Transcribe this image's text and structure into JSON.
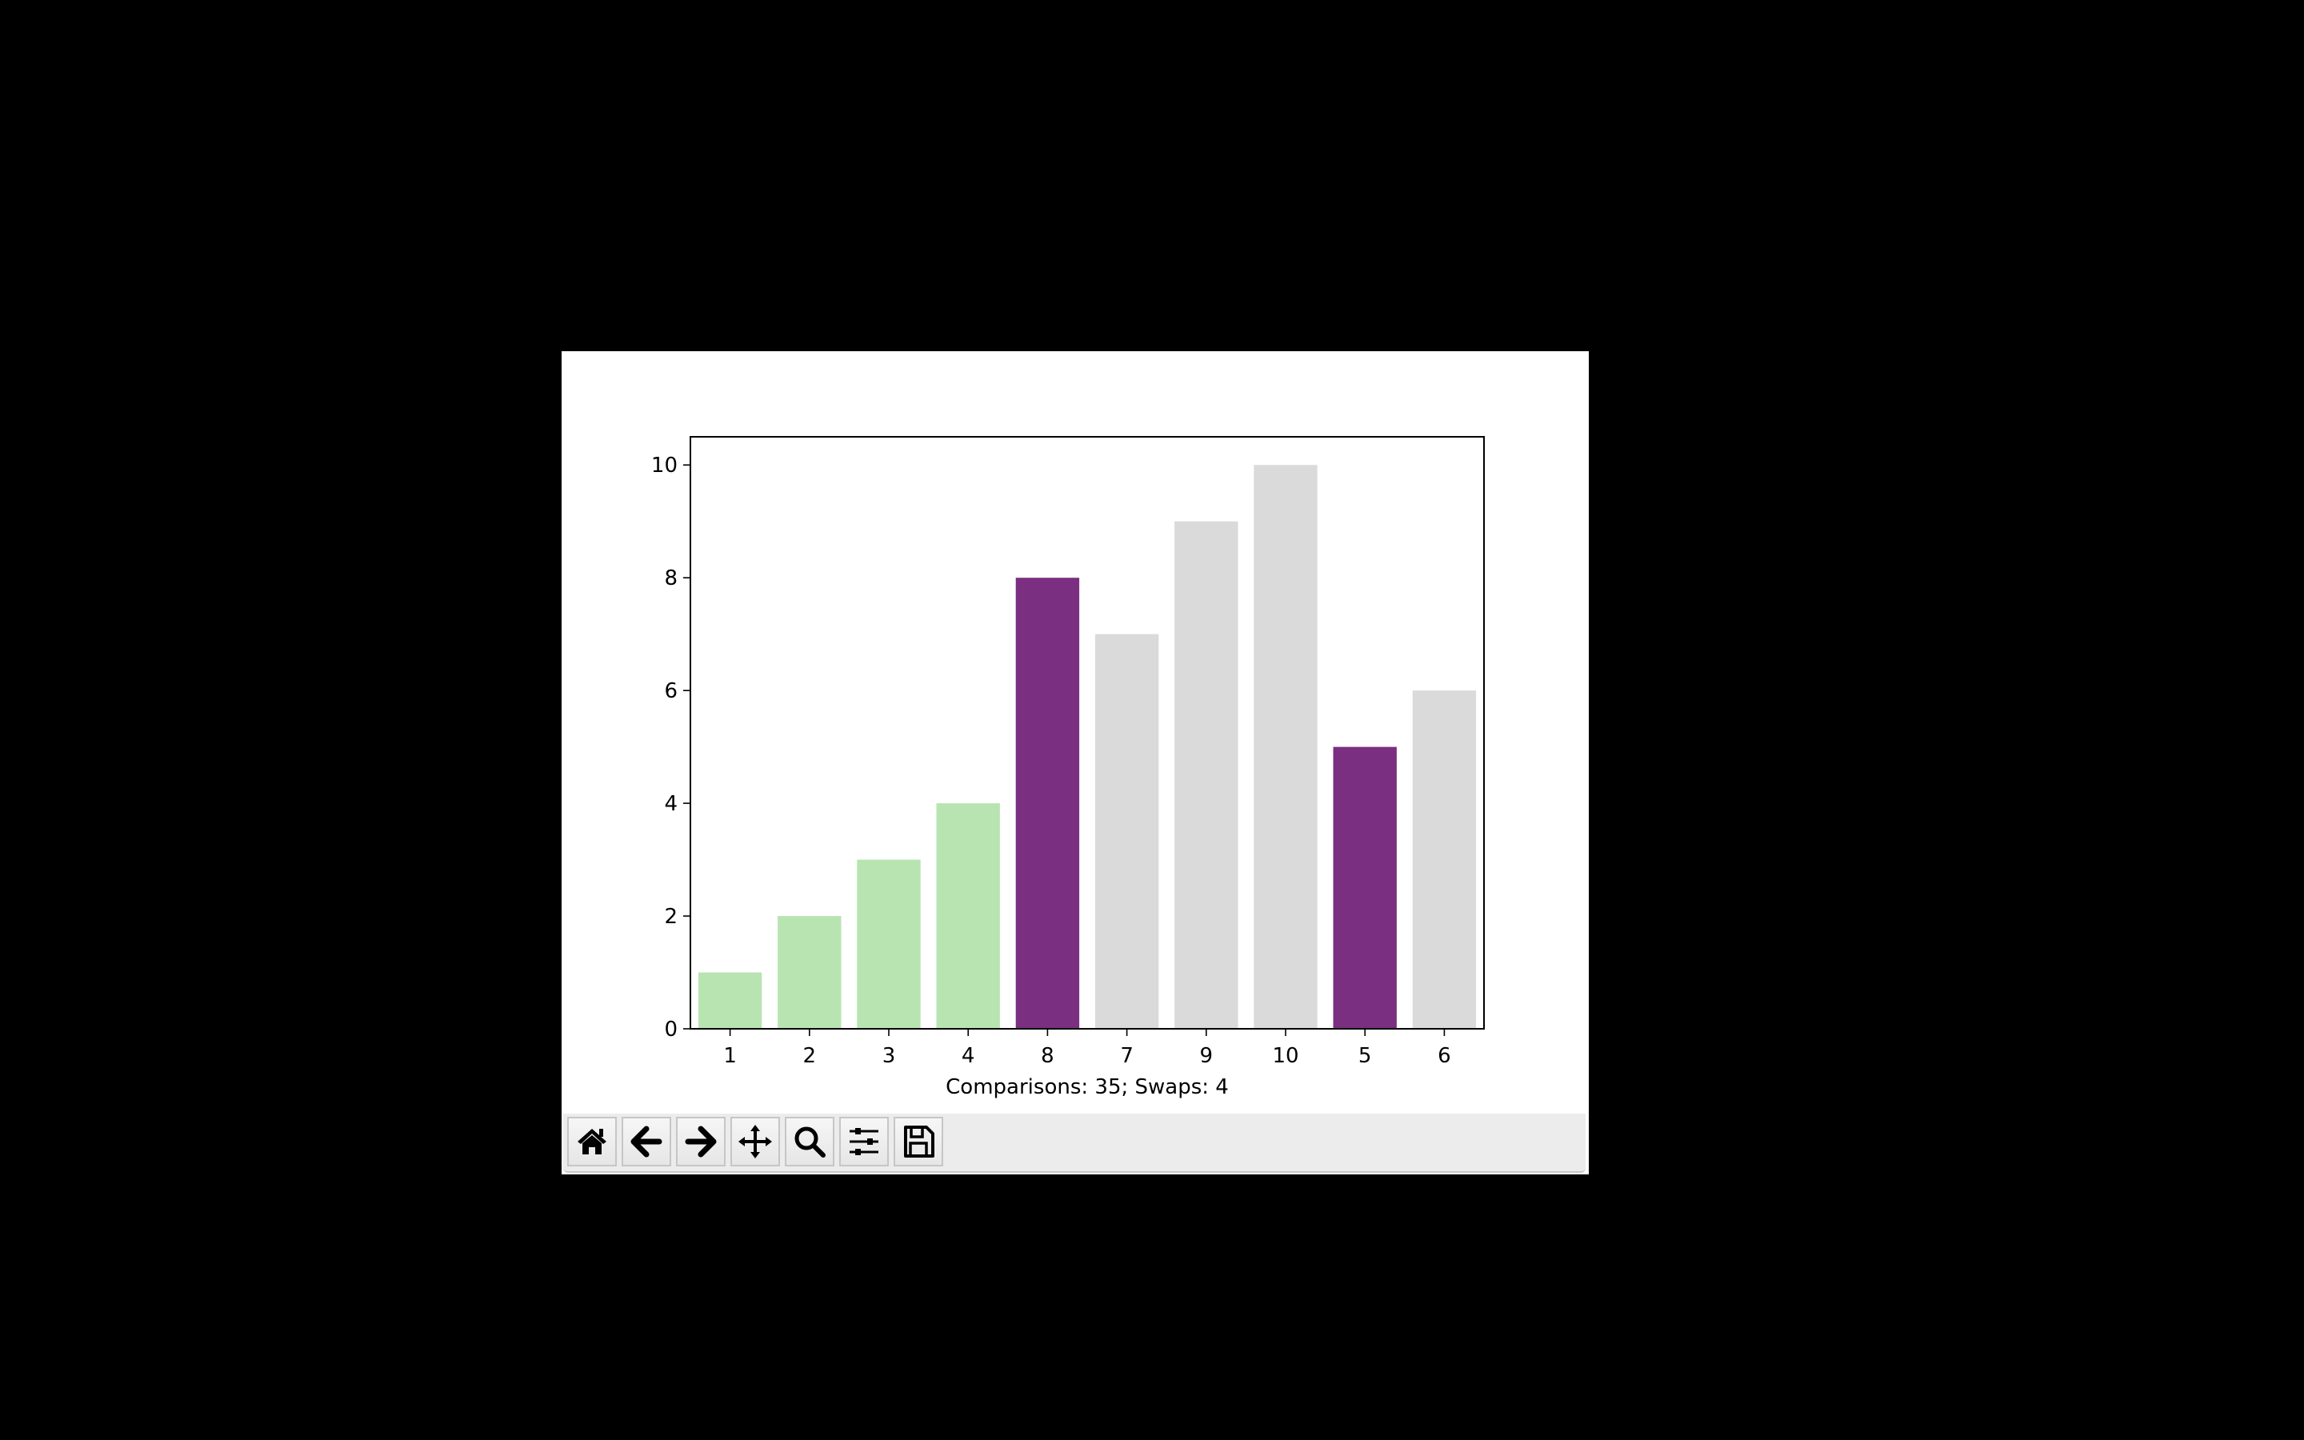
{
  "chart_data": {
    "type": "bar",
    "categories": [
      "1",
      "2",
      "3",
      "4",
      "8",
      "7",
      "9",
      "10",
      "5",
      "6"
    ],
    "values": [
      1,
      2,
      3,
      4,
      8,
      7,
      9,
      10,
      5,
      6
    ],
    "bar_colors": [
      "#b7e4b1",
      "#b7e4b1",
      "#b7e4b1",
      "#b7e4b1",
      "#7a2f80",
      "#dadada",
      "#dadada",
      "#dadada",
      "#7a2f80",
      "#dadada"
    ],
    "title": "",
    "xlabel": "Comparisons: 35; Swaps: 4",
    "ylabel": "",
    "ylim": [
      0,
      10.5
    ],
    "yticks": [
      "0",
      "2",
      "4",
      "6",
      "8",
      "10"
    ],
    "grid": false
  },
  "toolbar": {
    "buttons": [
      {
        "icon": "home-icon",
        "name": "home-button"
      },
      {
        "icon": "back-arrow-icon",
        "name": "back-button"
      },
      {
        "icon": "forward-arrow-icon",
        "name": "forward-button"
      },
      {
        "icon": "pan-move-icon",
        "name": "pan-button"
      },
      {
        "icon": "zoom-magnifier-icon",
        "name": "zoom-button"
      },
      {
        "icon": "sliders-configure-icon",
        "name": "configure-subplots-button"
      },
      {
        "icon": "floppy-save-icon",
        "name": "save-button"
      }
    ]
  }
}
